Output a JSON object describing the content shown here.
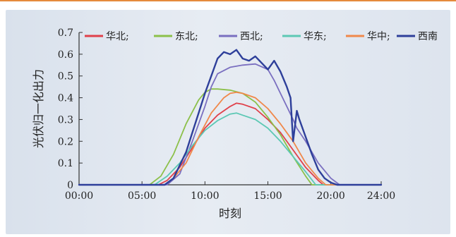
{
  "chart_data": {
    "type": "line",
    "xlabel": "时刻",
    "ylabel": "光伏归一化出力",
    "xlim": [
      0,
      24
    ],
    "ylim": [
      0,
      0.7
    ],
    "x_ticks": [
      "00:00",
      "05:00",
      "10:00",
      "15:00",
      "20:00",
      "24:00"
    ],
    "y_ticks": [
      "0",
      "0.1",
      "0.2",
      "0.3",
      "0.4",
      "0.5",
      "0.6",
      "0.7"
    ],
    "grid": false,
    "legend": "top",
    "series": [
      {
        "name": "华北",
        "legend_label": "华北;",
        "color": "#e0404a",
        "x": [
          0,
          6.3,
          7.0,
          8.0,
          9.0,
          10.0,
          11.0,
          12.0,
          12.5,
          13.0,
          14.0,
          15.0,
          16.0,
          17.0,
          18.0,
          19.0,
          19.4,
          24
        ],
        "y": [
          0,
          0,
          0.02,
          0.08,
          0.17,
          0.26,
          0.32,
          0.36,
          0.375,
          0.37,
          0.35,
          0.3,
          0.24,
          0.16,
          0.08,
          0.02,
          0,
          0
        ]
      },
      {
        "name": "东北",
        "legend_label": "东北;",
        "color": "#8cc04a",
        "x": [
          0,
          5.6,
          6.5,
          7.5,
          8.5,
          9.5,
          10.0,
          10.5,
          11.0,
          12.0,
          13.0,
          14.0,
          15.0,
          16.0,
          17.0,
          18.0,
          18.5,
          24
        ],
        "y": [
          0,
          0,
          0.04,
          0.14,
          0.28,
          0.39,
          0.425,
          0.44,
          0.44,
          0.435,
          0.42,
          0.38,
          0.31,
          0.23,
          0.13,
          0.04,
          0,
          0
        ]
      },
      {
        "name": "西北",
        "legend_label": "西北;",
        "color": "#7a6fc0",
        "x": [
          0,
          7.0,
          8.0,
          9.0,
          10.0,
          10.5,
          11.0,
          12.0,
          13.0,
          14.0,
          15.0,
          15.5,
          16.0,
          16.5,
          17.0,
          17.3,
          18.0,
          19.0,
          20.0,
          20.7,
          24
        ],
        "y": [
          0,
          0,
          0.05,
          0.2,
          0.36,
          0.45,
          0.51,
          0.54,
          0.55,
          0.555,
          0.53,
          0.48,
          0.42,
          0.36,
          0.3,
          0.26,
          0.2,
          0.1,
          0.03,
          0,
          0
        ]
      },
      {
        "name": "华东",
        "legend_label": "华东;",
        "color": "#5cc8b4",
        "x": [
          0,
          6.0,
          7.0,
          8.0,
          9.0,
          10.0,
          11.0,
          12.0,
          12.5,
          13.0,
          14.0,
          15.0,
          16.0,
          17.0,
          18.0,
          18.8,
          24
        ],
        "y": [
          0,
          0,
          0.04,
          0.1,
          0.18,
          0.25,
          0.295,
          0.325,
          0.33,
          0.32,
          0.3,
          0.26,
          0.2,
          0.13,
          0.06,
          0,
          0
        ]
      },
      {
        "name": "华中",
        "legend_label": "华中;",
        "color": "#f0884a",
        "x": [
          0,
          6.8,
          7.5,
          8.5,
          9.5,
          10.5,
          11.5,
          12.0,
          12.5,
          13.0,
          14.0,
          15.0,
          16.0,
          17.0,
          18.0,
          19.0,
          19.6,
          24
        ],
        "y": [
          0,
          0,
          0.03,
          0.1,
          0.22,
          0.33,
          0.4,
          0.42,
          0.425,
          0.42,
          0.4,
          0.35,
          0.28,
          0.2,
          0.1,
          0.03,
          0,
          0
        ]
      },
      {
        "name": "西南",
        "legend_label": "西南",
        "color": "#2e3f9a",
        "x": [
          0,
          6.8,
          7.5,
          8.5,
          9.0,
          9.5,
          10.0,
          10.5,
          11.0,
          11.5,
          12.0,
          12.5,
          13.0,
          13.5,
          14.0,
          14.5,
          15.0,
          15.5,
          16.0,
          16.5,
          16.8,
          17.0,
          17.3,
          17.5,
          18.0,
          18.5,
          19.0,
          19.5,
          20.0,
          20.5,
          24
        ],
        "y": [
          0,
          0,
          0.03,
          0.15,
          0.24,
          0.33,
          0.42,
          0.5,
          0.58,
          0.61,
          0.6,
          0.62,
          0.58,
          0.57,
          0.59,
          0.56,
          0.53,
          0.57,
          0.52,
          0.45,
          0.4,
          0.2,
          0.34,
          0.3,
          0.22,
          0.14,
          0.07,
          0.03,
          0.01,
          0,
          0
        ]
      }
    ]
  }
}
